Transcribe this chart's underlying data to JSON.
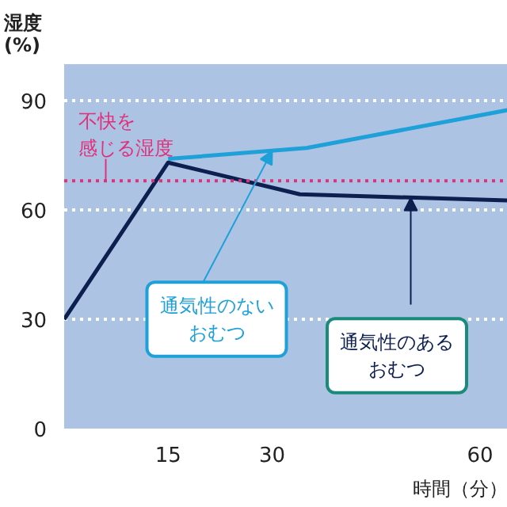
{
  "chart_data": {
    "type": "line",
    "ylabel": "湿度\n(%)",
    "xlabel": "時間（分）",
    "x": [
      0,
      15,
      34,
      64
    ],
    "series": [
      {
        "name": "通気性のあるおむつ",
        "color": "#0d1f4f",
        "values": [
          30,
          73,
          64.3,
          62.6
        ]
      },
      {
        "name": "通気性のないおむつ",
        "color": "#1ea0d8",
        "x": [
          15,
          35,
          64
        ],
        "values": [
          74,
          77,
          87.4
        ]
      }
    ],
    "xlim": [
      0,
      64
    ],
    "ylim": [
      0,
      100
    ],
    "xticks": [
      15,
      30,
      60
    ],
    "yticks": [
      0,
      30,
      60,
      90
    ],
    "grid": "y",
    "ref_lines": [
      {
        "axis": "y",
        "value": 68,
        "label": "不快を感じる湿度",
        "color": "#e0307a",
        "line_style": "dotted"
      }
    ]
  }
}
